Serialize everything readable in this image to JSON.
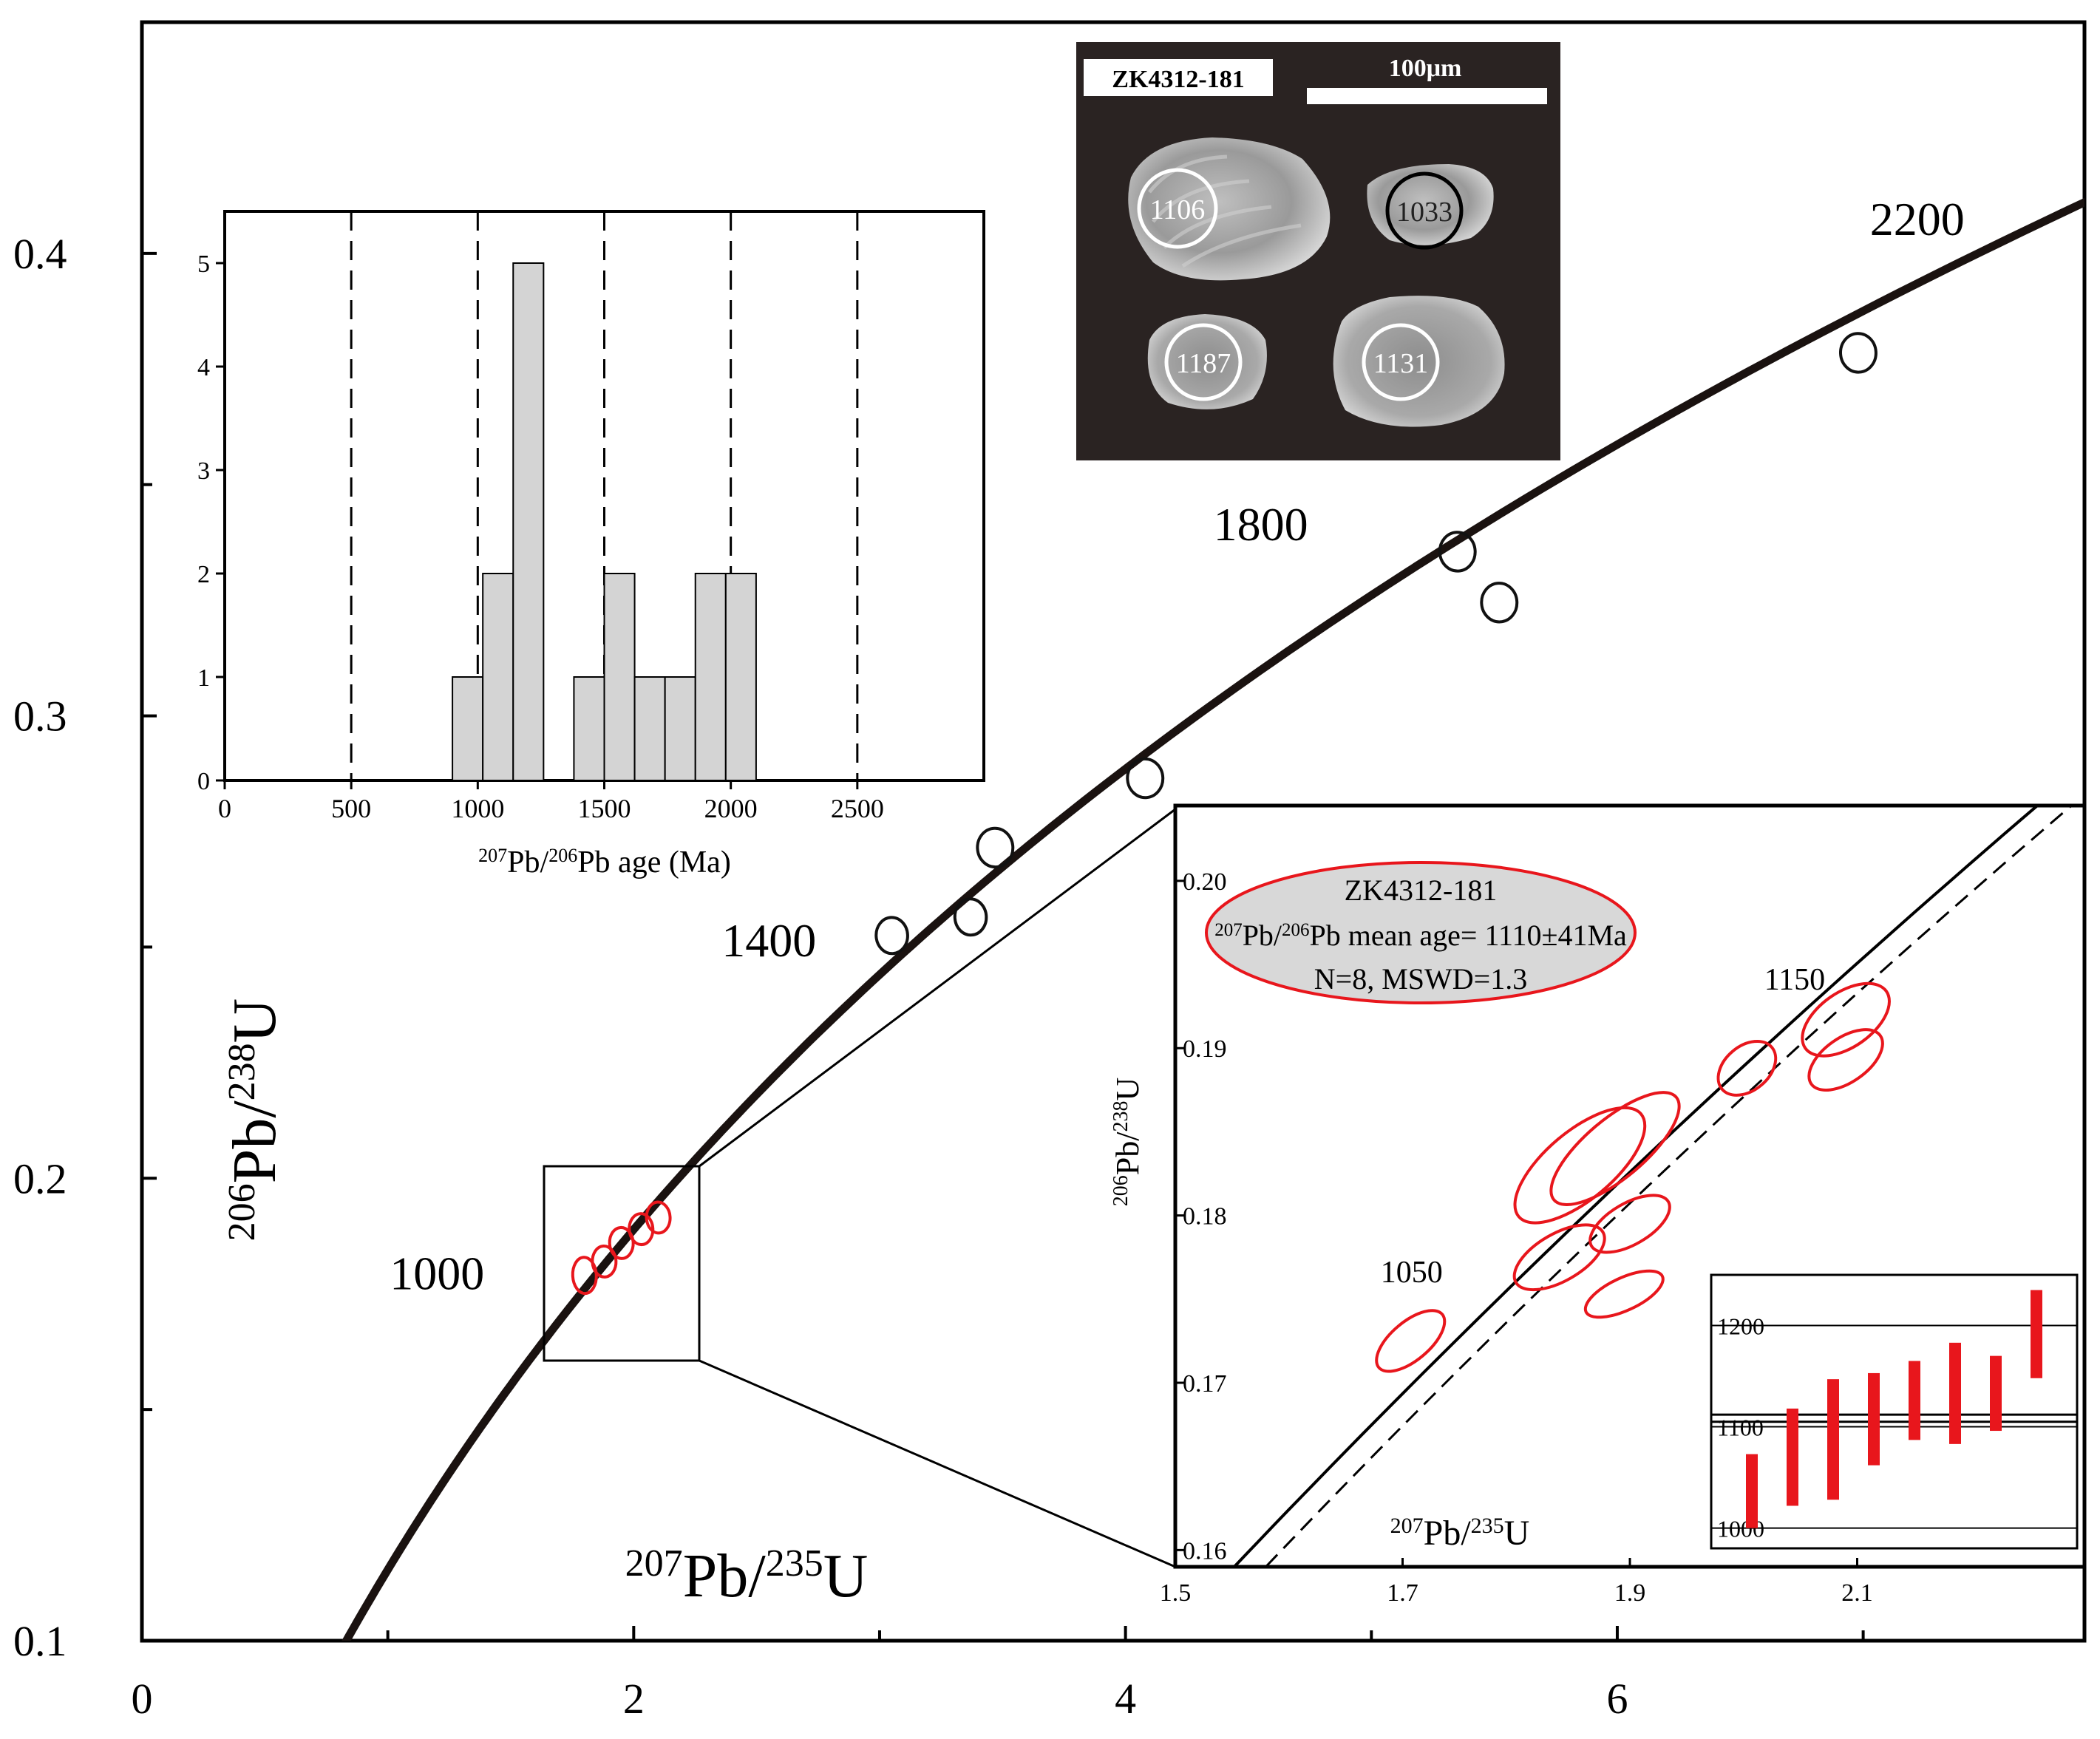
{
  "chart_data": [
    {
      "id": "concordia",
      "type": "scatter",
      "title": "",
      "xlabel_main": "207",
      "xlabel_mid": "Pb/",
      "xlabel_sup2": "235",
      "xlabel_tail": "U",
      "ylabel_main": "206",
      "ylabel_mid": "Pb/",
      "ylabel_sup2": "238",
      "ylabel_tail": "U",
      "xlim": [
        0,
        7.9
      ],
      "ylim": [
        0.1,
        0.45
      ],
      "xticks_major": [
        {
          "v": 0,
          "label": "0"
        },
        {
          "v": 2,
          "label": "2"
        },
        {
          "v": 4,
          "label": "4"
        },
        {
          "v": 6,
          "label": "6"
        }
      ],
      "xticks_minor": [
        1,
        3,
        5,
        7
      ],
      "yticks_major": [
        {
          "v": 0.1,
          "label": "0.1"
        },
        {
          "v": 0.2,
          "label": "0.2"
        },
        {
          "v": 0.3,
          "label": "0.3"
        },
        {
          "v": 0.4,
          "label": "0.4"
        }
      ],
      "yticks_minor": [
        0.15,
        0.25,
        0.35
      ],
      "age_labels": [
        {
          "label": "1000",
          "x": 1.2,
          "y": 0.176
        },
        {
          "label": "1400",
          "x": 2.55,
          "y": 0.248
        },
        {
          "label": "1800",
          "x": 4.55,
          "y": 0.338
        },
        {
          "label": "2200",
          "x": 7.22,
          "y": 0.404
        }
      ],
      "ellipses_black": [
        {
          "x": 3.05,
          "y": 0.2525,
          "rx": 0.04,
          "ry": 0.07,
          "angle": 33
        },
        {
          "x": 3.37,
          "y": 0.2565,
          "rx": 0.04,
          "ry": 0.07,
          "angle": 33
        },
        {
          "x": 3.47,
          "y": 0.2715,
          "rx": 0.045,
          "ry": 0.075,
          "angle": 33
        },
        {
          "x": 4.08,
          "y": 0.2865,
          "rx": 0.045,
          "ry": 0.075,
          "angle": 33
        },
        {
          "x": 5.35,
          "y": 0.3355,
          "rx": 0.045,
          "ry": 0.075,
          "angle": 33
        },
        {
          "x": 5.52,
          "y": 0.3245,
          "rx": 0.045,
          "ry": 0.075,
          "angle": 33
        },
        {
          "x": 6.98,
          "y": 0.3785,
          "rx": 0.045,
          "ry": 0.075,
          "angle": 33
        }
      ],
      "ellipses_red": [
        {
          "x": 1.8,
          "y": 0.179,
          "rx": 0.03,
          "ry": 0.07,
          "angle": 33
        },
        {
          "x": 1.88,
          "y": 0.182,
          "rx": 0.03,
          "ry": 0.06,
          "angle": 33
        },
        {
          "x": 1.95,
          "y": 0.186,
          "rx": 0.03,
          "ry": 0.06,
          "angle": 33
        },
        {
          "x": 2.03,
          "y": 0.189,
          "rx": 0.03,
          "ry": 0.06,
          "angle": 33
        },
        {
          "x": 2.1,
          "y": 0.1915,
          "rx": 0.03,
          "ry": 0.06,
          "angle": 33
        }
      ]
    },
    {
      "id": "histogram",
      "type": "bar",
      "xlabel_a": "207",
      "xlabel_b": "Pb/",
      "xlabel_c": "206",
      "xlabel_d": "Pb age (Ma)",
      "xlim": [
        0,
        3000
      ],
      "ylim": [
        0,
        5.5
      ],
      "xticks": [
        {
          "v": 0,
          "label": "0"
        },
        {
          "v": 500,
          "label": "500"
        },
        {
          "v": 1000,
          "label": "1000"
        },
        {
          "v": 1500,
          "label": "1500"
        },
        {
          "v": 2000,
          "label": "2000"
        },
        {
          "v": 2500,
          "label": "2500"
        }
      ],
      "yticks": [
        {
          "v": 0,
          "label": "0"
        },
        {
          "v": 1,
          "label": "1"
        },
        {
          "v": 2,
          "label": "2"
        },
        {
          "v": 3,
          "label": "3"
        },
        {
          "v": 4,
          "label": "4"
        },
        {
          "v": 5,
          "label": "5"
        }
      ],
      "dashed_lines": [
        500,
        1000,
        1500,
        2000,
        2500
      ],
      "bins": [
        {
          "x0": 900,
          "x1": 1020,
          "count": 1
        },
        {
          "x0": 1020,
          "x1": 1140,
          "count": 2
        },
        {
          "x0": 1140,
          "x1": 1260,
          "count": 5
        },
        {
          "x0": 1380,
          "x1": 1500,
          "count": 1
        },
        {
          "x0": 1500,
          "x1": 1620,
          "count": 2
        },
        {
          "x0": 1620,
          "x1": 1740,
          "count": 1
        },
        {
          "x0": 1740,
          "x1": 1860,
          "count": 1
        },
        {
          "x0": 1860,
          "x1": 1980,
          "count": 2
        },
        {
          "x0": 1980,
          "x1": 2100,
          "count": 2
        }
      ]
    },
    {
      "id": "zoom",
      "type": "scatter",
      "xlabel_a": "207",
      "xlabel_b": "Pb/",
      "xlabel_c": "235",
      "xlabel_d": "U",
      "ylabel_a": "206",
      "ylabel_b": "Pb/",
      "ylabel_c": "238",
      "ylabel_d": "U",
      "xlim": [
        1.5,
        2.3
      ],
      "ylim": [
        0.159,
        0.2045
      ],
      "xticks": [
        {
          "v": 1.5,
          "label": "1.5"
        },
        {
          "v": 1.7,
          "label": "1.7"
        },
        {
          "v": 1.9,
          "label": "1.9"
        },
        {
          "v": 2.1,
          "label": "2.1"
        }
      ],
      "yticks": [
        {
          "v": 0.16,
          "label": "0.16"
        },
        {
          "v": 0.17,
          "label": "0.17"
        },
        {
          "v": 0.18,
          "label": "0.18"
        },
        {
          "v": 0.19,
          "label": "0.19"
        },
        {
          "v": 0.2,
          "label": "0.20"
        }
      ],
      "age_labels": [
        {
          "label": "1050",
          "x": 1.708,
          "y": 0.176
        },
        {
          "label": "1150",
          "x": 2.045,
          "y": 0.1935
        }
      ],
      "ellipses": [
        {
          "x": 1.707,
          "y": 0.1725,
          "rx": 56,
          "ry": 26,
          "angle": -40
        },
        {
          "x": 1.856,
          "y": 0.183,
          "rx": 108,
          "ry": 46,
          "angle": -40
        },
        {
          "x": 1.887,
          "y": 0.184,
          "rx": 108,
          "ry": 40,
          "angle": -40
        },
        {
          "x": 1.838,
          "y": 0.1775,
          "rx": 68,
          "ry": 32,
          "angle": -30
        },
        {
          "x": 1.895,
          "y": 0.1753,
          "rx": 57,
          "ry": 22,
          "angle": -25
        },
        {
          "x": 1.9,
          "y": 0.1795,
          "rx": 60,
          "ry": 28,
          "angle": -30
        },
        {
          "x": 2.003,
          "y": 0.1888,
          "rx": 44,
          "ry": 30,
          "angle": -40
        },
        {
          "x": 2.09,
          "y": 0.1917,
          "rx": 67,
          "ry": 37,
          "angle": -35
        },
        {
          "x": 2.09,
          "y": 0.1893,
          "rx": 57,
          "ry": 30,
          "angle": -35
        }
      ],
      "info_title": "ZK4312-181",
      "info_sup": "207",
      "info_mid": "Pb/",
      "info_sup2": "206",
      "info_line2": "Pb mean age= 1110±41Ma",
      "info_line3": "N=8, MSWD=1.3"
    },
    {
      "id": "mean_age_plot",
      "type": "bar",
      "ylim": [
        980,
        1250
      ],
      "yticks": [
        {
          "v": 1000,
          "label": "1000"
        },
        {
          "v": 1100,
          "label": "1100"
        },
        {
          "v": 1200,
          "label": "1200"
        }
      ],
      "mean": 1110,
      "mean_band": [
        1105,
        1112
      ],
      "error_bars": [
        {
          "low": 1000,
          "high": 1073
        },
        {
          "low": 1022,
          "high": 1118
        },
        {
          "low": 1028,
          "high": 1147
        },
        {
          "low": 1062,
          "high": 1153
        },
        {
          "low": 1087,
          "high": 1165
        },
        {
          "low": 1083,
          "high": 1183
        },
        {
          "low": 1096,
          "high": 1170
        },
        {
          "low": 1148,
          "high": 1235
        }
      ]
    }
  ],
  "cl_image": {
    "sample": "ZK4312-181",
    "scale_label": "100μm",
    "spots": [
      "1106",
      "1033",
      "1187",
      "1131"
    ]
  },
  "colors": {
    "red": "#e8161c",
    "hist_fill": "#d4d4d4",
    "cl_bg": "#2a2322",
    "info_fill": "#d8d8d8"
  }
}
